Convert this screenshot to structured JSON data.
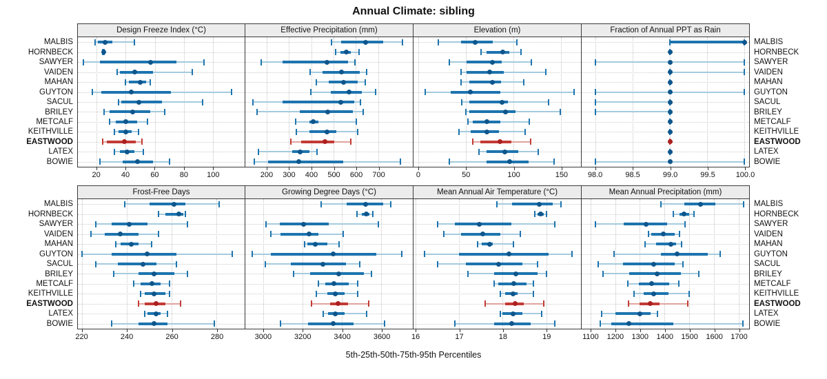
{
  "title": "Annual Climate: sibling",
  "caption": "5th-25th-50th-75th-95th Percentiles",
  "colors": {
    "normal": {
      "light": "#a5cade",
      "main": "#1d74ae",
      "dot": "#0e568c"
    },
    "highlight": {
      "light": "#e0a39e",
      "main": "#c23b34",
      "dot": "#ab211f"
    },
    "grid": "#c8c8c8",
    "panel_border": "#3a3a3a",
    "header_bg": "#ececec"
  },
  "chart_data": {
    "type": "dotplot-percentile-intervals",
    "title": "Annual Climate: sibling",
    "xlabel": "5th-25th-50th-75th-95th Percentiles",
    "grid": true,
    "legend_position": "none",
    "sites": [
      "MALBIS",
      "HORNBECK",
      "SAWYER",
      "VAIDEN",
      "MAHAN",
      "GUYTON",
      "SACUL",
      "BRILEY",
      "METCALF",
      "KEITHVILLE",
      "EASTWOOD",
      "LATEX",
      "BOWIE"
    ],
    "highlight_site": "EASTWOOD",
    "percentiles": [
      5,
      25,
      50,
      75,
      95
    ],
    "panels": [
      {
        "title": "Design Freeze Index (°C)",
        "xlim": [
          7,
          122
        ],
        "ticks": [
          20,
          40,
          60,
          80,
          100
        ],
        "tick_labels": [
          "20",
          "40",
          "60",
          "80",
          "100"
        ],
        "values": {
          "MALBIS": [
            19,
            21,
            26,
            31,
            46
          ],
          "HORNBECK": [
            24,
            24,
            25,
            25,
            25
          ],
          "SAWYER": [
            11,
            22,
            57,
            75,
            94
          ],
          "VAIDEN": [
            34,
            36,
            46,
            59,
            86
          ],
          "MAHAN": [
            40,
            42,
            50,
            54,
            57
          ],
          "GUYTON": [
            17,
            23,
            44,
            71,
            113
          ],
          "SACUL": [
            35,
            37,
            49,
            65,
            93
          ],
          "BRILEY": [
            25,
            29,
            45,
            57,
            67
          ],
          "METCALF": [
            29,
            33,
            40,
            48,
            55
          ],
          "KEITHVILLE": [
            32,
            35,
            40,
            44,
            49
          ],
          "EASTWOOD": [
            24,
            27,
            39,
            47,
            51
          ],
          "LATEX": [
            32,
            36,
            41,
            46,
            52
          ],
          "BOWIE": [
            22,
            38,
            48,
            59,
            70
          ]
        }
      },
      {
        "title": "Effective Precipitation (mm)",
        "xlim": [
          105,
          855
        ],
        "ticks": [
          200,
          300,
          400,
          500,
          600,
          700
        ],
        "tick_labels": [
          "200",
          "300",
          "400",
          "500",
          "600",
          "700"
        ],
        "values": {
          "MALBIS": [
            492,
            535,
            643,
            721,
            810
          ],
          "HORNBECK": [
            510,
            530,
            557,
            576,
            614
          ],
          "SAWYER": [
            176,
            272,
            470,
            566,
            597
          ],
          "VAIDEN": [
            396,
            452,
            535,
            618,
            648
          ],
          "MAHAN": [
            422,
            478,
            545,
            607,
            643
          ],
          "GUYTON": [
            398,
            489,
            568,
            628,
            688
          ],
          "SACUL": [
            138,
            272,
            533,
            592,
            621
          ],
          "BRILEY": [
            156,
            349,
            473,
            587,
            633
          ],
          "METCALF": [
            331,
            391,
            409,
            432,
            602
          ],
          "KEITHVILLE": [
            332,
            391,
            471,
            512,
            609
          ],
          "EASTWOOD": [
            308,
            355,
            462,
            504,
            576
          ],
          "LATEX": [
            164,
            316,
            349,
            391,
            427
          ],
          "BOWIE": [
            145,
            207,
            344,
            542,
            798
          ]
        }
      },
      {
        "title": "Elevation (m)",
        "xlim": [
          -5,
          171
        ],
        "ticks": [
          0,
          50,
          100,
          150
        ],
        "tick_labels": [
          "0",
          "50",
          "100",
          "150"
        ],
        "values": {
          "MALBIS": [
            21,
            45,
            60,
            78,
            104
          ],
          "HORNBECK": [
            66,
            72,
            89,
            96,
            108
          ],
          "SAWYER": [
            33,
            51,
            78,
            88,
            119
          ],
          "VAIDEN": [
            45,
            51,
            75,
            90,
            134
          ],
          "MAHAN": [
            45,
            54,
            78,
            87,
            111
          ],
          "GUYTON": [
            7,
            34,
            55,
            86,
            164
          ],
          "SACUL": [
            46,
            54,
            88,
            94,
            137
          ],
          "BRILEY": [
            50,
            54,
            92,
            102,
            149
          ],
          "METCALF": [
            52,
            57,
            72,
            86,
            117
          ],
          "KEITHVILLE": [
            43,
            55,
            72,
            85,
            112
          ],
          "EASTWOOD": [
            57,
            65,
            86,
            98,
            118
          ],
          "LATEX": [
            64,
            72,
            91,
            105,
            126
          ],
          "BOWIE": [
            33,
            72,
            96,
            116,
            143
          ]
        }
      },
      {
        "title": "Fraction of Annual PPT as Rain",
        "xlim": [
          97.82,
          100.06
        ],
        "ticks": [
          98.0,
          98.5,
          99.0,
          99.5,
          100.0
        ],
        "tick_labels": [
          "98.0",
          "98.5",
          "99.0",
          "99.5",
          "100.0"
        ],
        "values": {
          "MALBIS": [
            99,
            99,
            100,
            100,
            100
          ],
          "HORNBECK": [
            99,
            99,
            99,
            99,
            99
          ],
          "SAWYER": [
            98,
            99,
            99,
            99,
            100
          ],
          "VAIDEN": [
            99,
            99,
            99,
            99,
            100
          ],
          "MAHAN": [
            99,
            99,
            99,
            99,
            99
          ],
          "GUYTON": [
            98,
            99,
            99,
            99,
            100
          ],
          "SACUL": [
            98,
            99,
            99,
            99,
            99
          ],
          "BRILEY": [
            98,
            99,
            99,
            99,
            99
          ],
          "METCALF": [
            99,
            99,
            99,
            99,
            99
          ],
          "KEITHVILLE": [
            99,
            99,
            99,
            99,
            99
          ],
          "EASTWOOD": [
            99,
            99,
            99,
            99,
            99
          ],
          "LATEX": [
            99,
            99,
            99,
            99,
            99
          ],
          "BOWIE": [
            98,
            99,
            99,
            99,
            100
          ]
        }
      },
      {
        "title": "Frost-Free Days",
        "xlim": [
          218,
          292.5
        ],
        "ticks": [
          220,
          240,
          260,
          280
        ],
        "tick_labels": [
          "220",
          "240",
          "260",
          "280"
        ],
        "values": {
          "MALBIS": [
            239,
            250,
            261,
            266,
            281
          ],
          "HORNBECK": [
            254,
            257,
            263,
            265,
            266
          ],
          "SAWYER": [
            226,
            233,
            241,
            249,
            267
          ],
          "VAIDEN": [
            224,
            230,
            237,
            245,
            254
          ],
          "MAHAN": [
            235,
            237,
            242,
            245,
            251
          ],
          "GUYTON": [
            220,
            233,
            249,
            262,
            287
          ],
          "SACUL": [
            226,
            236,
            247,
            253,
            262
          ],
          "BRILEY": [
            234,
            245,
            252,
            261,
            267
          ],
          "METCALF": [
            243,
            246,
            251,
            255,
            259
          ],
          "KEITHVILLE": [
            246,
            248,
            252,
            257,
            259
          ],
          "EASTWOOD": [
            245,
            248,
            253,
            257,
            264
          ],
          "LATEX": [
            248,
            249,
            253,
            255,
            258
          ],
          "BOWIE": [
            233,
            245,
            252,
            258,
            279
          ]
        }
      },
      {
        "title": "Growing Degree Days (°C)",
        "xlim": [
          2910,
          3760
        ],
        "ticks": [
          3000,
          3200,
          3400,
          3600
        ],
        "tick_labels": [
          "3000",
          "3200",
          "3400",
          "3600"
        ],
        "values": {
          "MALBIS": [
            3296,
            3423,
            3522,
            3609,
            3647
          ],
          "HORNBECK": [
            3475,
            3500,
            3525,
            3540,
            3557
          ],
          "SAWYER": [
            3015,
            3085,
            3205,
            3335,
            3585
          ],
          "VAIDEN": [
            3040,
            3090,
            3235,
            3280,
            3405
          ],
          "MAHAN": [
            3210,
            3225,
            3265,
            3325,
            3385
          ],
          "GUYTON": [
            2945,
            3040,
            3357,
            3575,
            3705
          ],
          "SACUL": [
            3010,
            3140,
            3305,
            3420,
            3490
          ],
          "BRILEY": [
            3155,
            3240,
            3385,
            3510,
            3550
          ],
          "METCALF": [
            3280,
            3315,
            3360,
            3435,
            3480
          ],
          "KEITHVILLE": [
            3270,
            3325,
            3365,
            3415,
            3480
          ],
          "EASTWOOD": [
            3245,
            3340,
            3380,
            3430,
            3535
          ],
          "LATEX": [
            3305,
            3330,
            3365,
            3415,
            3525
          ],
          "BOWIE": [
            3090,
            3230,
            3357,
            3460,
            3615
          ]
        }
      },
      {
        "title": "Mean Annual Air Temperature (°C)",
        "xlim": [
          15.95,
          19.8
        ],
        "ticks": [
          16,
          17,
          18,
          19
        ],
        "tick_labels": [
          "16",
          "17",
          "18",
          "19"
        ],
        "values": {
          "MALBIS": [
            17.86,
            18.21,
            18.84,
            19.15,
            19.34
          ],
          "HORNBECK": [
            18.74,
            18.8,
            18.88,
            18.95,
            19.01
          ],
          "SAWYER": [
            16.5,
            16.9,
            17.47,
            18.2,
            19.2
          ],
          "VAIDEN": [
            16.65,
            17.05,
            17.55,
            17.95,
            18.4
          ],
          "MAHAN": [
            17.43,
            17.52,
            17.7,
            17.77,
            18.24
          ],
          "GUYTON": [
            16.2,
            17.0,
            18.15,
            19.05,
            19.6
          ],
          "SACUL": [
            16.5,
            17.15,
            17.9,
            18.45,
            18.8
          ],
          "BRILEY": [
            17.2,
            17.8,
            18.3,
            18.8,
            19.0
          ],
          "METCALF": [
            17.8,
            17.9,
            18.25,
            18.55,
            18.7
          ],
          "KEITHVILLE": [
            17.95,
            18.05,
            18.24,
            18.35,
            18.7
          ],
          "EASTWOOD": [
            17.6,
            18.05,
            18.28,
            18.48,
            18.95
          ],
          "LATEX": [
            17.94,
            18.0,
            18.24,
            18.45,
            18.9
          ],
          "BOWIE": [
            16.9,
            17.8,
            18.2,
            18.65,
            19.2
          ]
        }
      },
      {
        "title": "Mean Annual Precipitation (mm)",
        "xlim": [
          1064,
          1743
        ],
        "ticks": [
          1100,
          1200,
          1300,
          1400,
          1500,
          1600,
          1700
        ],
        "tick_labels": [
          "1100",
          "1200",
          "1300",
          "1400",
          "1500",
          "1600",
          "1700"
        ],
        "values": {
          "MALBIS": [
            1385,
            1480,
            1545,
            1605,
            1720
          ],
          "HORNBECK": [
            1435,
            1460,
            1478,
            1500,
            1520
          ],
          "SAWYER": [
            1120,
            1235,
            1325,
            1410,
            1483
          ],
          "VAIDEN": [
            1335,
            1345,
            1395,
            1440,
            1460
          ],
          "MAHAN": [
            1320,
            1365,
            1425,
            1448,
            1470
          ],
          "GUYTON": [
            1195,
            1385,
            1450,
            1575,
            1625
          ],
          "SACUL": [
            1130,
            1233,
            1357,
            1440,
            1474
          ],
          "BRILEY": [
            1150,
            1258,
            1369,
            1466,
            1539
          ],
          "METCALF": [
            1250,
            1295,
            1348,
            1420,
            1459
          ],
          "KEITHVILLE": [
            1276,
            1316,
            1355,
            1415,
            1499
          ],
          "EASTWOOD": [
            1255,
            1300,
            1341,
            1380,
            1494
          ],
          "LATEX": [
            1146,
            1202,
            1299,
            1344,
            1372
          ],
          "BOWIE": [
            1140,
            1185,
            1255,
            1435,
            1717
          ]
        }
      }
    ]
  }
}
